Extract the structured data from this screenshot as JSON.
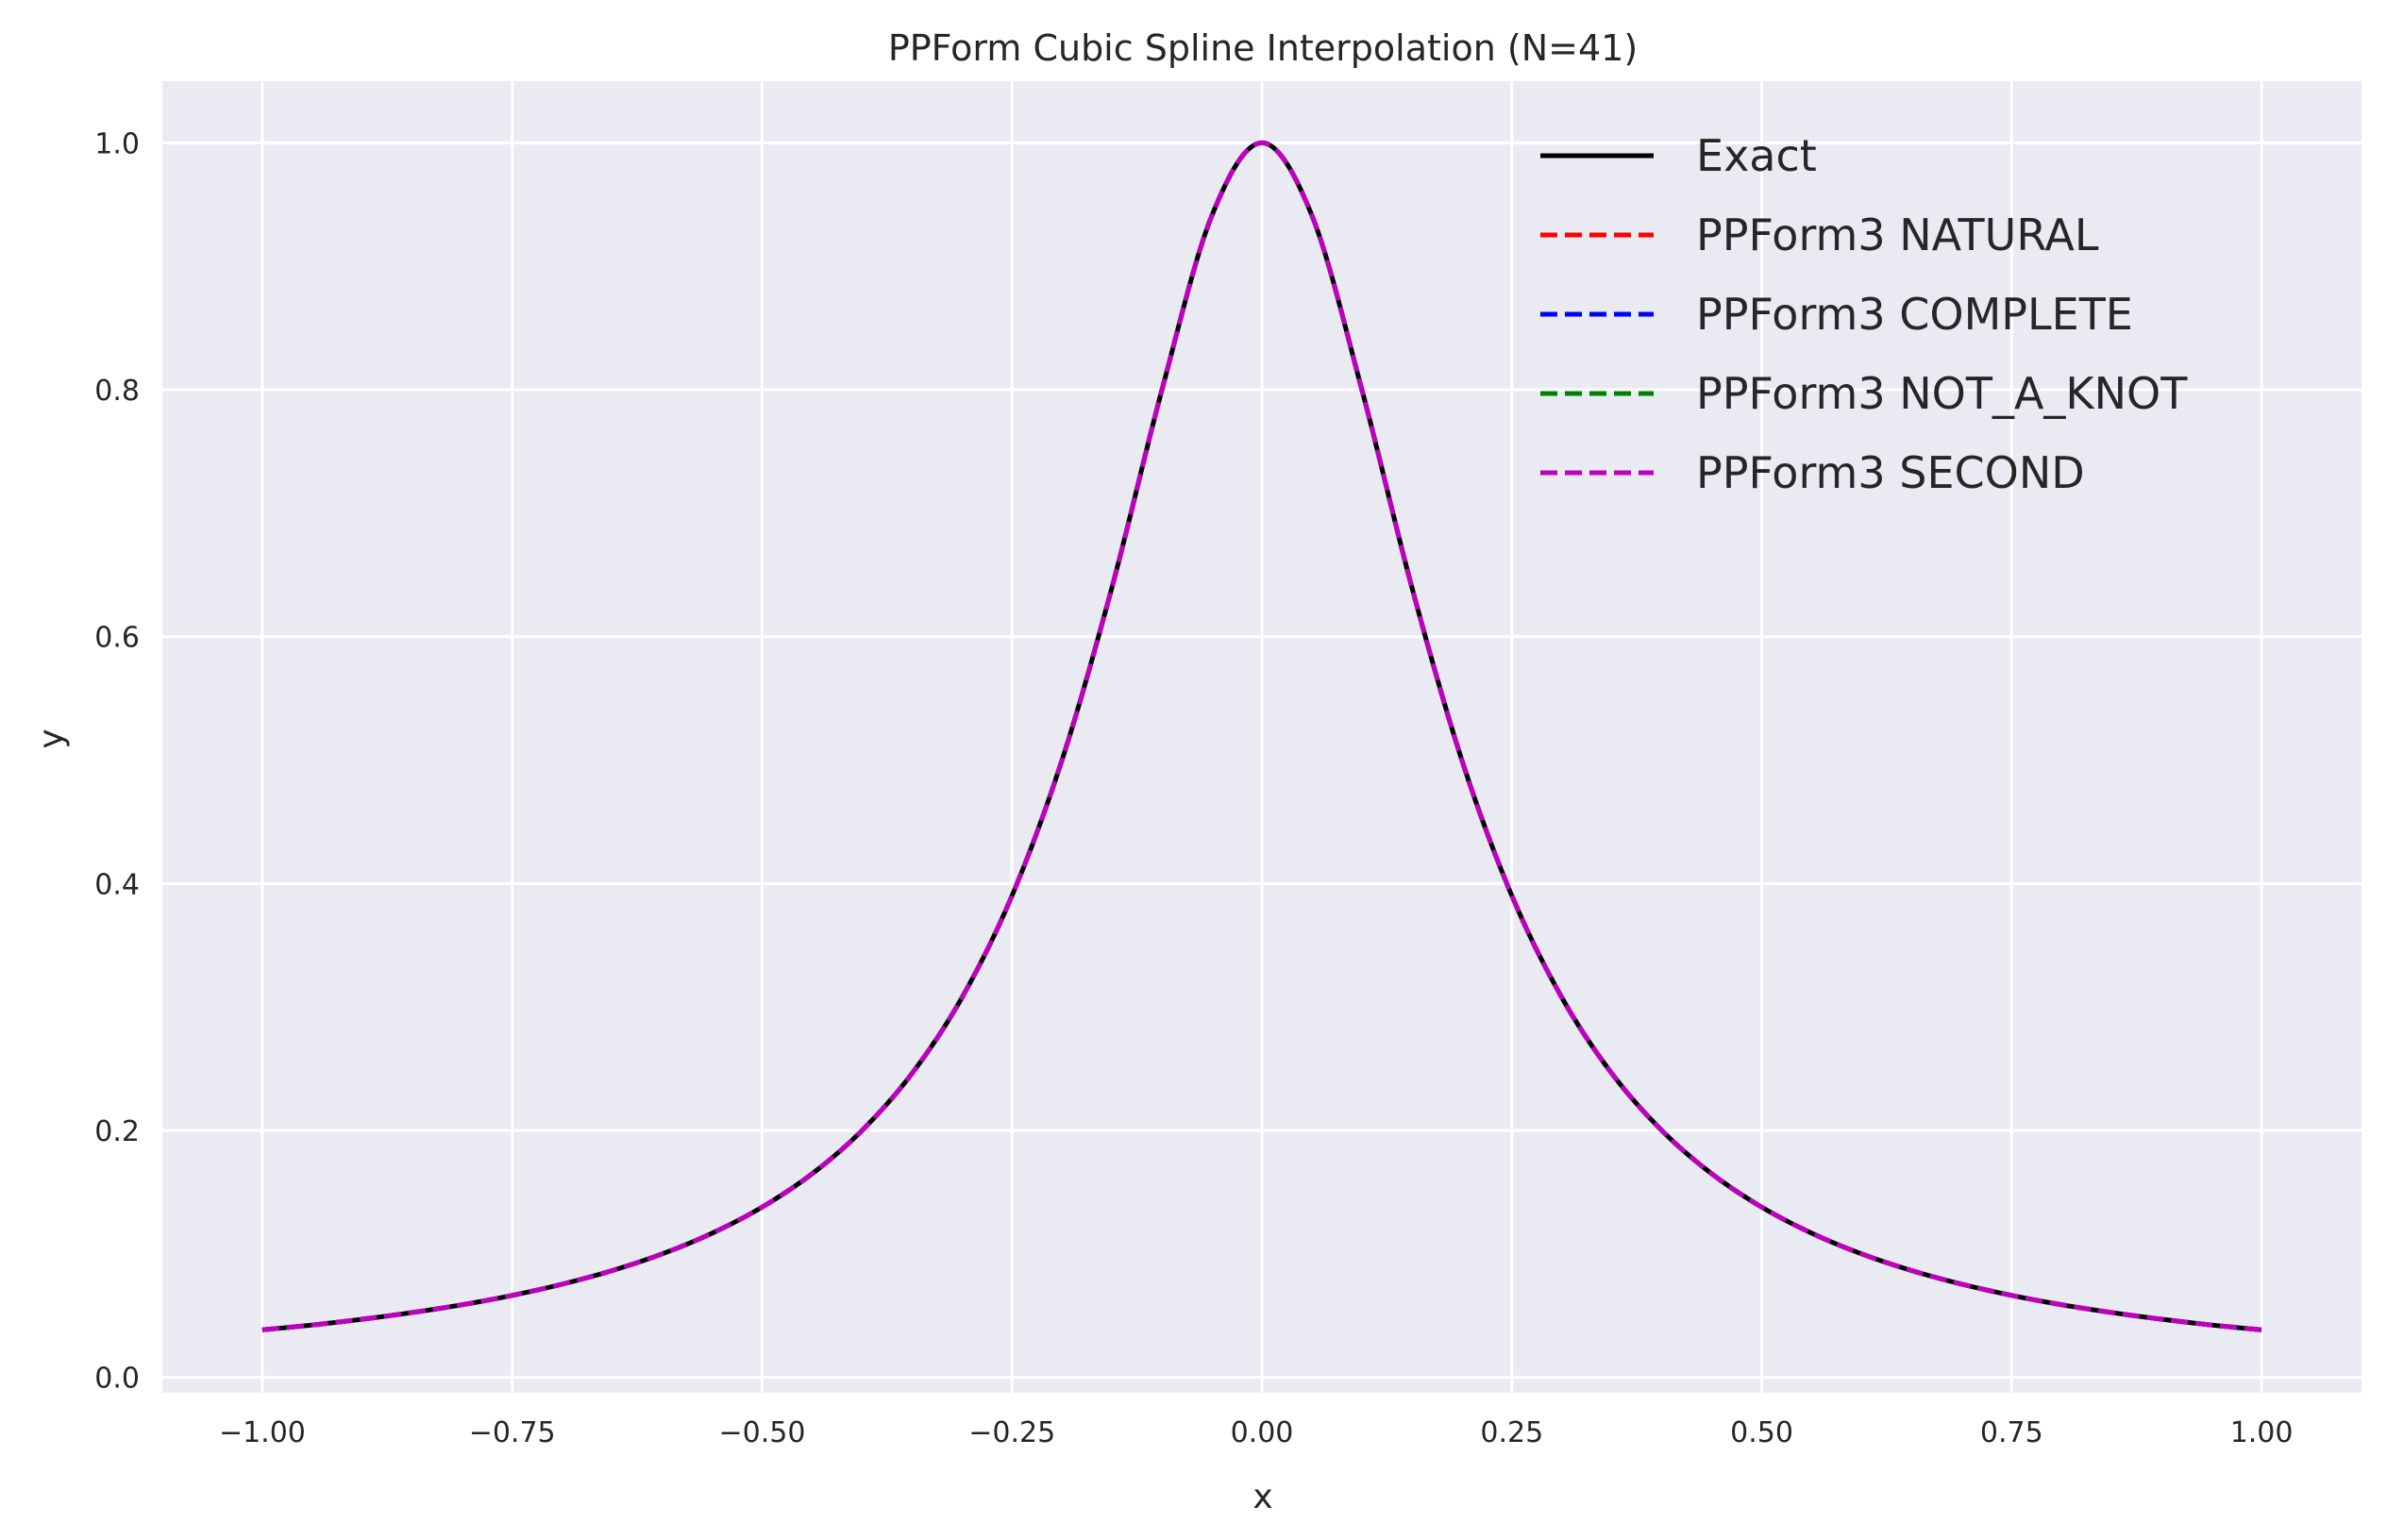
{
  "chart_data": {
    "type": "line",
    "title": "PPForm Cubic Spline Interpolation (N=41)",
    "xlabel": "x",
    "ylabel": "y",
    "xlim": [
      -1.1,
      1.1
    ],
    "ylim": [
      -0.0125,
      1.05
    ],
    "x_ticks": [
      -1.0,
      -0.75,
      -0.5,
      -0.25,
      0.0,
      0.25,
      0.5,
      0.75,
      1.0
    ],
    "x_tick_labels": [
      "−1.00",
      "−0.75",
      "−0.50",
      "−0.25",
      "0.00",
      "0.25",
      "0.50",
      "0.75",
      "1.00"
    ],
    "y_ticks": [
      0.0,
      0.2,
      0.4,
      0.6,
      0.8,
      1.0
    ],
    "y_tick_labels": [
      "0.0",
      "0.2",
      "0.4",
      "0.6",
      "0.8",
      "1.0"
    ],
    "grid": true,
    "legend_position": "top-right",
    "background_color": "#eaeaf2",
    "grid_color": "#ffffff",
    "x": [
      -1.0,
      -0.95,
      -0.9,
      -0.85,
      -0.8,
      -0.75,
      -0.7,
      -0.65,
      -0.6,
      -0.55,
      -0.5,
      -0.45,
      -0.4,
      -0.35,
      -0.3,
      -0.25,
      -0.2,
      -0.15,
      -0.1,
      -0.05,
      0.0,
      0.05,
      0.1,
      0.15,
      0.2,
      0.25,
      0.3,
      0.35,
      0.4,
      0.45,
      0.5,
      0.55,
      0.6,
      0.65,
      0.7,
      0.75,
      0.8,
      0.85,
      0.9,
      0.95,
      1.0
    ],
    "series": [
      {
        "name": "Exact",
        "color": "#000000",
        "style": "solid",
        "values": [
          0.0385,
          0.0424,
          0.0471,
          0.0525,
          0.0588,
          0.0664,
          0.0755,
          0.0865,
          0.1,
          0.1168,
          0.1379,
          0.1649,
          0.2,
          0.2462,
          0.3077,
          0.3902,
          0.5,
          0.64,
          0.8,
          0.9412,
          1.0,
          0.9412,
          0.8,
          0.64,
          0.5,
          0.3902,
          0.3077,
          0.2462,
          0.2,
          0.1649,
          0.1379,
          0.1168,
          0.1,
          0.0865,
          0.0755,
          0.0664,
          0.0588,
          0.0525,
          0.0471,
          0.0424,
          0.0385
        ]
      },
      {
        "name": "PPForm3 NATURAL",
        "color": "#ff0000",
        "style": "dashed",
        "values": [
          0.0385,
          0.0424,
          0.0471,
          0.0525,
          0.0588,
          0.0664,
          0.0755,
          0.0865,
          0.1,
          0.1168,
          0.1379,
          0.1649,
          0.2,
          0.2462,
          0.3077,
          0.3902,
          0.5,
          0.64,
          0.8,
          0.9412,
          1.0,
          0.9412,
          0.8,
          0.64,
          0.5,
          0.3902,
          0.3077,
          0.2462,
          0.2,
          0.1649,
          0.1379,
          0.1168,
          0.1,
          0.0865,
          0.0755,
          0.0664,
          0.0588,
          0.0525,
          0.0471,
          0.0424,
          0.0385
        ]
      },
      {
        "name": "PPForm3 COMPLETE",
        "color": "#0000ff",
        "style": "dashed",
        "values": [
          0.0385,
          0.0424,
          0.0471,
          0.0525,
          0.0588,
          0.0664,
          0.0755,
          0.0865,
          0.1,
          0.1168,
          0.1379,
          0.1649,
          0.2,
          0.2462,
          0.3077,
          0.3902,
          0.5,
          0.64,
          0.8,
          0.9412,
          1.0,
          0.9412,
          0.8,
          0.64,
          0.5,
          0.3902,
          0.3077,
          0.2462,
          0.2,
          0.1649,
          0.1379,
          0.1168,
          0.1,
          0.0865,
          0.0755,
          0.0664,
          0.0588,
          0.0525,
          0.0471,
          0.0424,
          0.0385
        ]
      },
      {
        "name": "PPForm3 NOT_A_KNOT",
        "color": "#008000",
        "style": "dashed",
        "values": [
          0.0385,
          0.0424,
          0.0471,
          0.0525,
          0.0588,
          0.0664,
          0.0755,
          0.0865,
          0.1,
          0.1168,
          0.1379,
          0.1649,
          0.2,
          0.2462,
          0.3077,
          0.3902,
          0.5,
          0.64,
          0.8,
          0.9412,
          1.0,
          0.9412,
          0.8,
          0.64,
          0.5,
          0.3902,
          0.3077,
          0.2462,
          0.2,
          0.1649,
          0.1379,
          0.1168,
          0.1,
          0.0865,
          0.0755,
          0.0664,
          0.0588,
          0.0525,
          0.0471,
          0.0424,
          0.0385
        ]
      },
      {
        "name": "PPForm3 SECOND",
        "color": "#bf00bf",
        "style": "dashed",
        "values": [
          0.0385,
          0.0424,
          0.0471,
          0.0525,
          0.0588,
          0.0664,
          0.0755,
          0.0865,
          0.1,
          0.1168,
          0.1379,
          0.1649,
          0.2,
          0.2462,
          0.3077,
          0.3902,
          0.5,
          0.64,
          0.8,
          0.9412,
          1.0,
          0.9412,
          0.8,
          0.64,
          0.5,
          0.3902,
          0.3077,
          0.2462,
          0.2,
          0.1649,
          0.1379,
          0.1168,
          0.1,
          0.0865,
          0.0755,
          0.0664,
          0.0588,
          0.0525,
          0.0471,
          0.0424,
          0.0385
        ]
      }
    ]
  }
}
